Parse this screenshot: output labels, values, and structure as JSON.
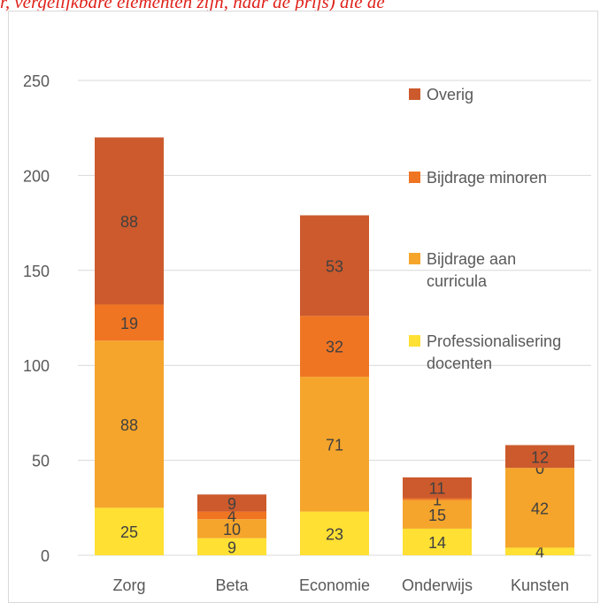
{
  "header_cutoff_text": "r, vergelijkbare elementen zijn, naar de prijs) die de",
  "chart_data": {
    "type": "bar",
    "stacked": true,
    "categories": [
      "Zorg",
      "Beta",
      "Economie",
      "Onderwijs",
      "Kunsten"
    ],
    "series": [
      {
        "name": "Professionalisering docenten",
        "color": "#ffe033",
        "values": [
          25,
          9,
          23,
          14,
          4
        ]
      },
      {
        "name": "Bijdrage aan curricula",
        "color": "#f5a52b",
        "values": [
          88,
          10,
          71,
          15,
          42
        ]
      },
      {
        "name": "Bijdrage minoren",
        "color": "#f07523",
        "values": [
          19,
          4,
          32,
          1,
          0
        ]
      },
      {
        "name": "Overig",
        "color": "#cc5a2c",
        "values": [
          88,
          9,
          53,
          11,
          12
        ]
      }
    ],
    "ylim": [
      0,
      250
    ],
    "yticks": [
      0,
      50,
      100,
      150,
      200,
      250
    ],
    "grid": true,
    "legend_position": "right",
    "legend_order": [
      "Overig",
      "Bijdrage minoren",
      "Bijdrage aan curricula",
      "Professionalisering docenten"
    ],
    "legend_lines": {
      "Overig": [
        "Overig"
      ],
      "Bijdrage minoren": [
        "Bijdrage minoren"
      ],
      "Bijdrage aan curricula": [
        "Bijdrage aan",
        "curricula"
      ],
      "Professionalisering docenten": [
        "Professionalisering",
        "docenten"
      ]
    }
  }
}
